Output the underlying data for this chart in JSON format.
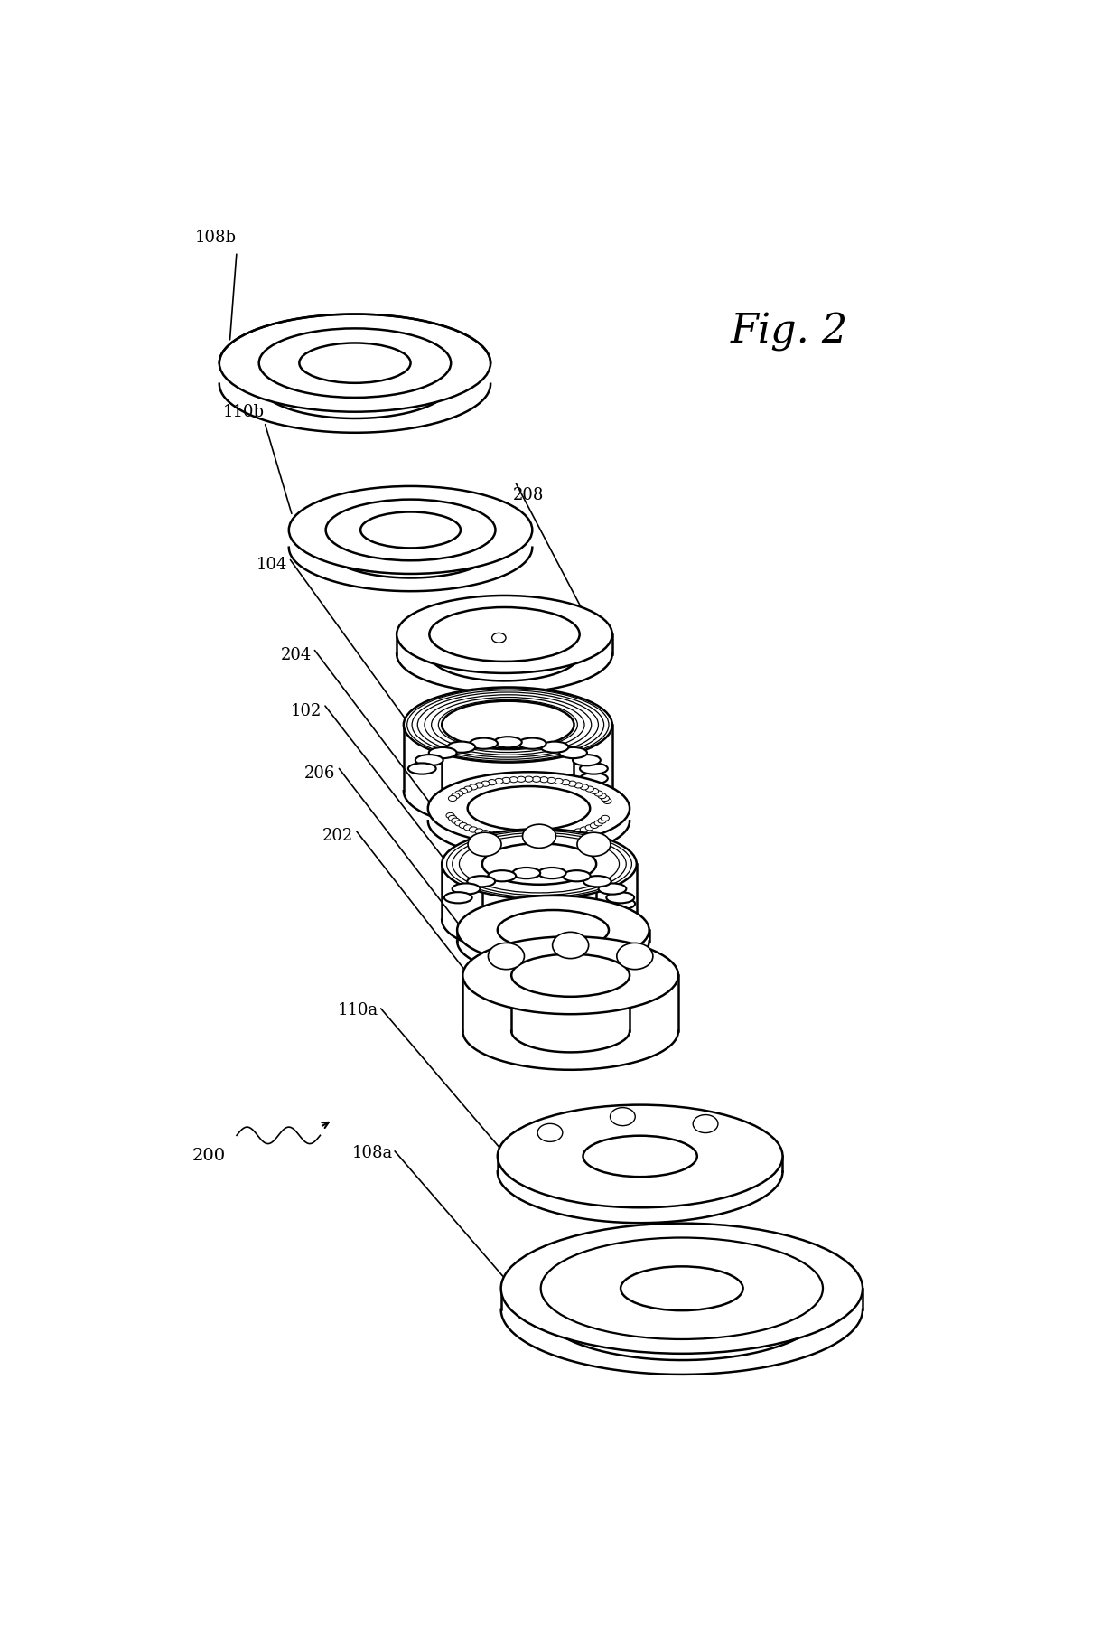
{
  "fig_label": "Fig. 2",
  "title_fontsize": 32,
  "background_color": "#ffffff",
  "line_color": "#000000",
  "line_width": 1.8,
  "label_fontsize": 13,
  "components": {
    "108b": {
      "label": "108b"
    },
    "110b": {
      "label": "110b"
    },
    "208": {
      "label": "208"
    },
    "104": {
      "label": "104"
    },
    "204": {
      "label": "204"
    },
    "102": {
      "label": "102"
    },
    "206": {
      "label": "206"
    },
    "202": {
      "label": "202"
    },
    "110a": {
      "label": "110a"
    },
    "108a": {
      "label": "108a"
    },
    "200": {
      "label": "200"
    }
  }
}
